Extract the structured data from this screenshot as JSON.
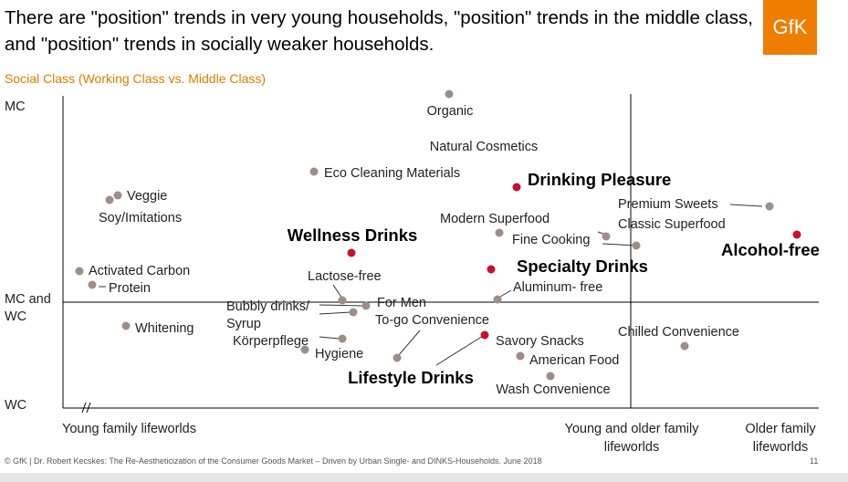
{
  "header": {
    "title": "There are \"position\" trends in very young households, \"position\" trends in the middle class, and \"position\" trends in socially weaker households.",
    "logo": "GfK"
  },
  "chart": {
    "y_axis_title": "Social Class (Working Class vs. Middle Class)",
    "y_labels": [
      [
        "MC"
      ],
      [
        "MC and",
        "WC"
      ],
      [
        "WC"
      ]
    ],
    "x_labels": [
      [
        "Young family lifeworlds"
      ],
      [
        "Young and older family",
        "lifeworlds"
      ],
      [
        "Older family",
        "lifeworlds"
      ]
    ],
    "items": [
      {
        "label": [
          "Organic"
        ],
        "dot": true
      },
      {
        "label": [
          "Natural Cosmetics"
        ],
        "dot": false
      },
      {
        "label": [
          "Eco Cleaning Materials"
        ],
        "dot": true
      },
      {
        "label": [
          "Drinking Pleasure"
        ],
        "dot": true,
        "highlight": true
      },
      {
        "label": [
          "Veggie"
        ],
        "dot": true
      },
      {
        "label": [
          "Soy/Imitations"
        ],
        "dot": true
      },
      {
        "label": [
          "Premium Sweets"
        ],
        "dot": true
      },
      {
        "label": [
          "Classic Superfood"
        ],
        "dot": true
      },
      {
        "label": [
          "Modern Superfood"
        ],
        "dot": true
      },
      {
        "label": [
          "Fine Cooking"
        ],
        "dot": true
      },
      {
        "label": [
          "Wellness Drinks"
        ],
        "dot": true,
        "highlight": true
      },
      {
        "label": [
          "Alcohol-free"
        ],
        "dot": true,
        "highlight": true
      },
      {
        "label": [
          "Activated Carbon"
        ],
        "dot": true
      },
      {
        "label": [
          "Specialty Drinks"
        ],
        "dot": true,
        "highlight": true
      },
      {
        "label": [
          "Protein"
        ],
        "dot": true
      },
      {
        "label": [
          "Lactose-free"
        ],
        "dot": true
      },
      {
        "label": [
          "Aluminum- free"
        ],
        "dot": true
      },
      {
        "label": [
          "For Men"
        ],
        "dot": true
      },
      {
        "label": [
          "Bubbly drinks/",
          "Syrup"
        ],
        "dot": true
      },
      {
        "label": [
          "To-go Convenience"
        ],
        "dot": true
      },
      {
        "label": [
          "Whitening"
        ],
        "dot": true
      },
      {
        "label": [
          "Körperpflege"
        ],
        "dot": true
      },
      {
        "label": [
          "Hygiene"
        ],
        "dot": true
      },
      {
        "label": [
          "Savory Snacks"
        ],
        "dot": false
      },
      {
        "label": [
          "American Food"
        ],
        "dot": true
      },
      {
        "label": [
          "Wash Convenience"
        ],
        "dot": true
      },
      {
        "label": [
          "Chilled Convenience"
        ],
        "dot": true
      },
      {
        "label": [
          "Lifestyle Drinks"
        ],
        "dot": true,
        "highlight": true
      }
    ]
  },
  "footer": {
    "text": "© GfK | Dr. Robert Kecskes: The Re-Aestheticization of the Consumer Goods Market – Driven by Urban Single- and DINKS-Households. June 2018",
    "page": "11"
  }
}
